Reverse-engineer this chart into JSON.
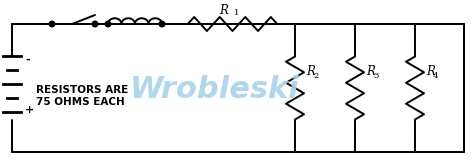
{
  "background_color": "#ffffff",
  "line_color": "#000000",
  "watermark_color": "#a8d4e8",
  "watermark_text": "Wrobleski",
  "watermark_fontsize": 22,
  "label_text1": "RESISTORS ARE",
  "label_text2": "75 OHMS EACH",
  "label_fontsize": 7.5,
  "R1_label": "R",
  "R1_sub": "1",
  "R2_label": "R",
  "R2_sub": "2",
  "R3_label": "R",
  "R3_sub": "3",
  "R4_label": "R",
  "R4_sub": "4",
  "minus_label": "-",
  "plus_label": "+",
  "fig_width": 4.77,
  "fig_height": 1.62,
  "dpi": 100
}
